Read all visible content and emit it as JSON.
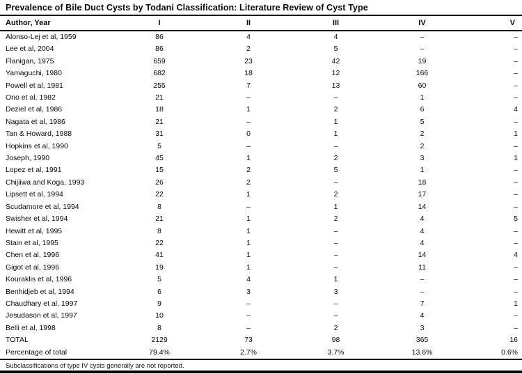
{
  "table": {
    "title": "Prevalence of Bile Duct Cysts by Todani Classification: Literature Review of Cyst Type",
    "columns": [
      "Author, Year",
      "I",
      "II",
      "III",
      "IV",
      "V"
    ],
    "rows": [
      [
        "Alonso-Lej et al, 1959",
        "86",
        "4",
        "4",
        "–",
        "–"
      ],
      [
        "Lee et al, 2004",
        "86",
        "2",
        "5",
        "–",
        "–"
      ],
      [
        "Flanigan, 1975",
        "659",
        "23",
        "42",
        "19",
        "–"
      ],
      [
        "Yamaguchi, 1980",
        "682",
        "18",
        "12",
        "166",
        "–"
      ],
      [
        "Powell et al, 1981",
        "255",
        "7",
        "13",
        "60",
        "–"
      ],
      [
        "Ono et al, 1982",
        "21",
        "–",
        "–",
        "1",
        "–"
      ],
      [
        "Deziel et al, 1986",
        "18",
        "1",
        "2",
        "6",
        "4"
      ],
      [
        "Nagata et al, 1986",
        "21",
        "–",
        "1",
        "5",
        "–"
      ],
      [
        "Tan & Howard, 1988",
        "31",
        "0",
        "1",
        "2",
        "1"
      ],
      [
        "Hopkins et al, 1990",
        "5",
        "–",
        "–",
        "2",
        "–"
      ],
      [
        "Joseph, 1990",
        "45",
        "1",
        "2",
        "3",
        "1"
      ],
      [
        "Lopez et al, 1991",
        "15",
        "2",
        "5",
        "1",
        "–"
      ],
      [
        "Chijiiwa and Koga, 1993",
        "26",
        "2",
        "–",
        "18",
        "–"
      ],
      [
        "Lipsett et al, 1994",
        "22",
        "1",
        "2",
        "17",
        "–"
      ],
      [
        "Scudamore et al, 1994",
        "8",
        "–",
        "1",
        "14",
        "–"
      ],
      [
        "Swisher et al, 1994",
        "21",
        "1",
        "2",
        "4",
        "5"
      ],
      [
        "Hewitt et al, 1995",
        "8",
        "1",
        "–",
        "4",
        "–"
      ],
      [
        "Stain et al, 1995",
        "22",
        "1",
        "–",
        "4",
        "–"
      ],
      [
        "Chen et al, 1996",
        "41",
        "1",
        "–",
        "14",
        "4"
      ],
      [
        "Gigot et al, 1996",
        "19",
        "1",
        "–",
        "11",
        "–"
      ],
      [
        "Kouraklis et al, 1996",
        "5",
        "4",
        "1",
        "–",
        "–"
      ],
      [
        "Benhidjeb et al, 1994",
        "6",
        "3",
        "3",
        "–",
        "–"
      ],
      [
        "Chaudhary et al, 1997",
        "9",
        "–",
        "–",
        "7",
        "1"
      ],
      [
        "Jesudason et al, 1997",
        "10",
        "–",
        "–",
        "4",
        "–"
      ],
      [
        "Belli et al, 1998",
        "8",
        "–",
        "2",
        "3",
        "–"
      ]
    ],
    "total_row": [
      "TOTAL",
      "2129",
      "73",
      "98",
      "365",
      "16"
    ],
    "percentage_row": [
      "Percentage of total",
      "79.4%",
      "2.7%",
      "3.7%",
      "13.6%",
      "0.6%"
    ],
    "footnote": "Subclassifications of type IV cysts generally are not reported.",
    "colors": {
      "text": "#0a0a0a",
      "rule": "#000000",
      "background": "#ffffff"
    }
  }
}
